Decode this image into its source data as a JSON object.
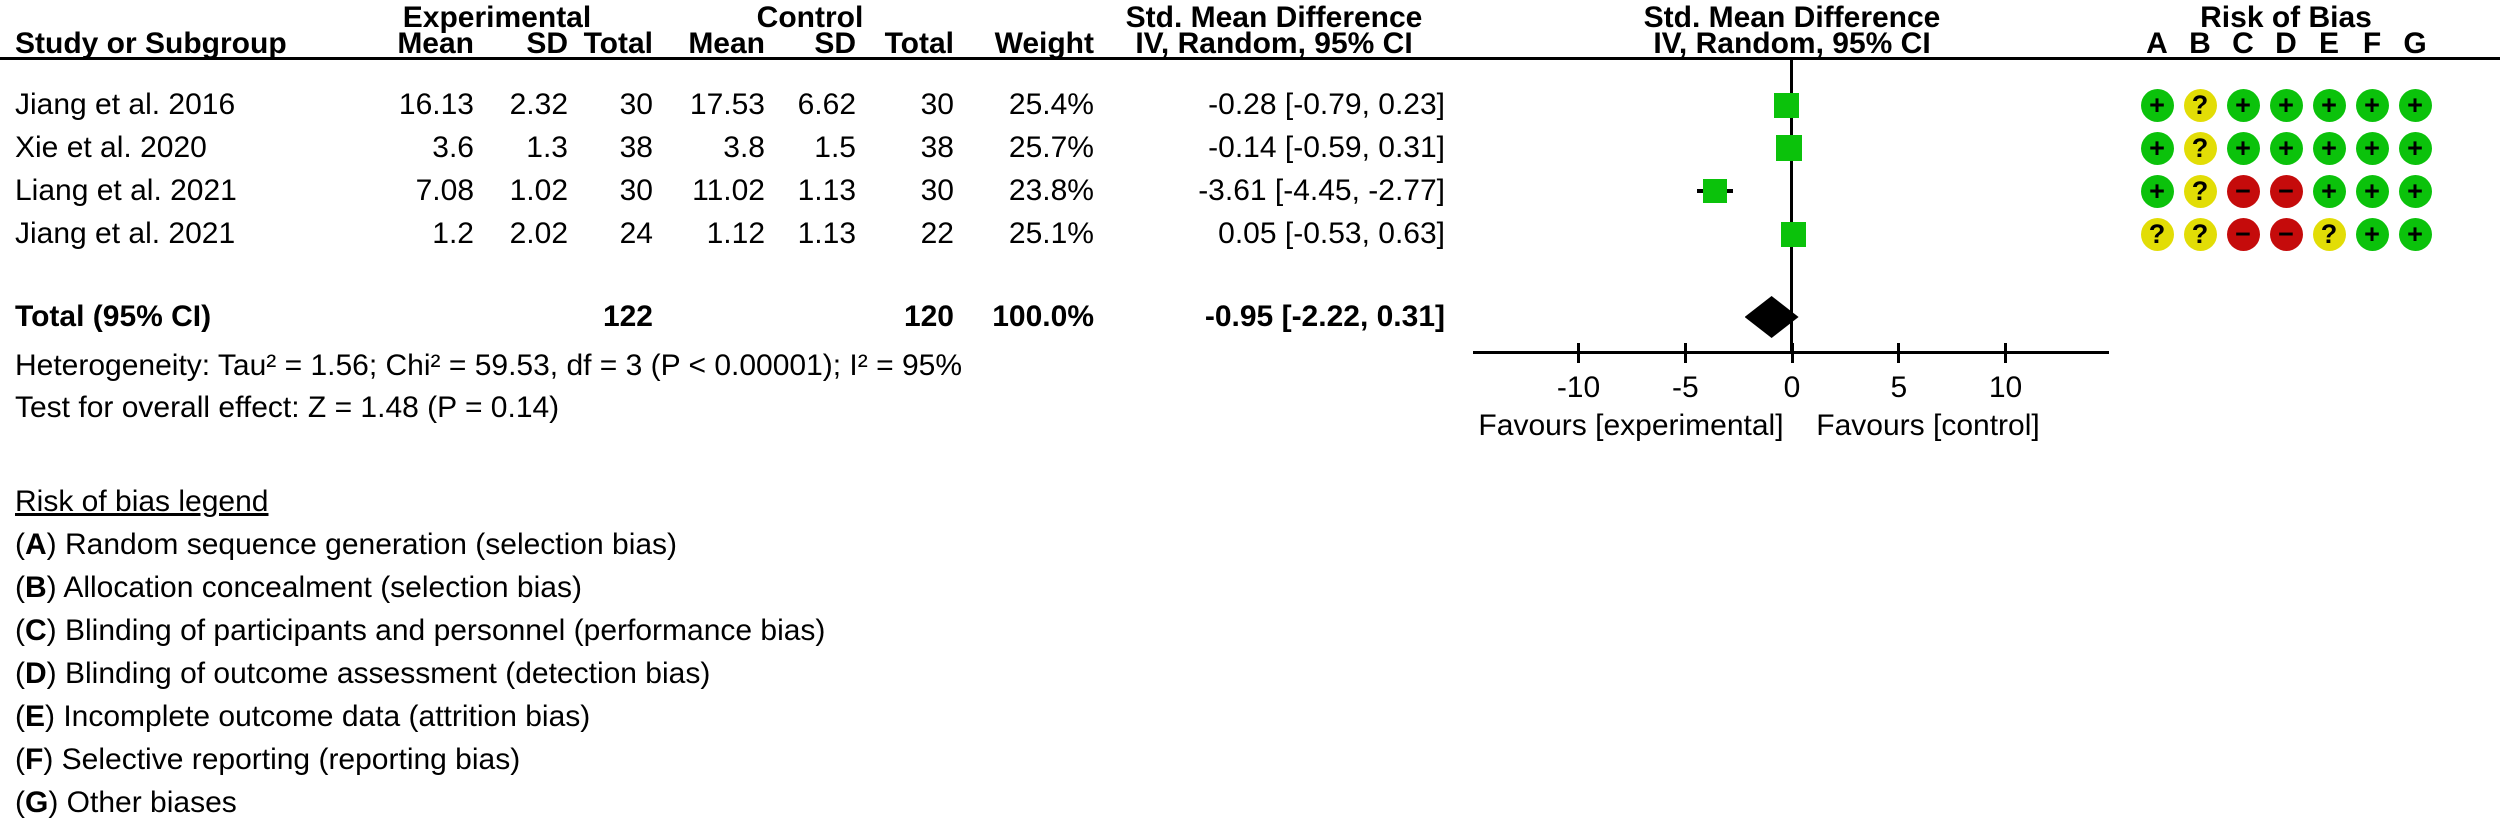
{
  "table": {
    "headers": {
      "group1": "Experimental",
      "group2": "Control",
      "study": "Study or Subgroup",
      "mean": "Mean",
      "sd": "SD",
      "total": "Total",
      "weight": "Weight",
      "smd_col_title": "Std. Mean Difference",
      "smd_col_sub": "IV, Random, 95% CI",
      "plot_col_title": "Std. Mean Difference",
      "plot_col_sub": "IV, Random, 95% CI",
      "rob_title": "Risk of Bias",
      "rob_cols": [
        "A",
        "B",
        "C",
        "D",
        "E",
        "F",
        "G"
      ]
    },
    "rows": [
      {
        "study": "Jiang et al. 2016",
        "mean1": "16.13",
        "sd1": "2.32",
        "total1": "30",
        "mean2": "17.53",
        "sd2": "6.62",
        "total2": "30",
        "weight": "25.4%",
        "ci_text": "-0.28 [-0.79, 0.23]",
        "rob": [
          "+",
          "?",
          "+",
          "+",
          "+",
          "+",
          "+"
        ]
      },
      {
        "study": "Xie et al. 2020",
        "mean1": "3.6",
        "sd1": "1.3",
        "total1": "38",
        "mean2": "3.8",
        "sd2": "1.5",
        "total2": "38",
        "weight": "25.7%",
        "ci_text": "-0.14 [-0.59, 0.31]",
        "rob": [
          "+",
          "?",
          "+",
          "+",
          "+",
          "+",
          "+"
        ]
      },
      {
        "study": "Liang et al. 2021",
        "mean1": "7.08",
        "sd1": "1.02",
        "total1": "30",
        "mean2": "11.02",
        "sd2": "1.13",
        "total2": "30",
        "weight": "23.8%",
        "ci_text": "-3.61 [-4.45, -2.77]",
        "rob": [
          "+",
          "?",
          "-",
          "-",
          "+",
          "+",
          "+"
        ]
      },
      {
        "study": "Jiang et al. 2021",
        "mean1": "1.2",
        "sd1": "2.02",
        "total1": "24",
        "mean2": "1.12",
        "sd2": "1.13",
        "total2": "22",
        "weight": "25.1%",
        "ci_text": "0.05 [-0.53, 0.63]",
        "rob": [
          "?",
          "?",
          "-",
          "-",
          "?",
          "+",
          "+"
        ]
      }
    ],
    "total_row": {
      "label": "Total (95% CI)",
      "total1": "122",
      "total2": "120",
      "weight": "100.0%",
      "ci_text": "-0.95 [-2.22, 0.31]"
    },
    "heterogeneity": "Heterogeneity: Tau² = 1.56; Chi² = 59.53, df = 3 (P < 0.00001); I² = 95%",
    "overall_effect": "Test for overall effect: Z = 1.48 (P = 0.14)"
  },
  "rob_legend": {
    "title": "Risk of bias legend",
    "items": [
      {
        "key": "A",
        "label": "Random sequence generation (selection bias)"
      },
      {
        "key": "B",
        "label": "Allocation concealment (selection bias)"
      },
      {
        "key": "C",
        "label": "Blinding of participants and personnel (performance bias)"
      },
      {
        "key": "D",
        "label": "Blinding of outcome assessment (detection bias)"
      },
      {
        "key": "E",
        "label": "Incomplete outcome data (attrition bias)"
      },
      {
        "key": "F",
        "label": "Selective reporting (reporting bias)"
      },
      {
        "key": "G",
        "label": "Other biases"
      }
    ]
  },
  "colors": {
    "square": "#0BC20B",
    "diamond": "#000000",
    "rob_low": "#0BC20B",
    "rob_unclear": "#E2DD06",
    "rob_high": "#C50B0B"
  },
  "chart_data": {
    "type": "forest",
    "title": "Std. Mean Difference",
    "effect_measure": "IV, Random, 95% CI",
    "xlim": [
      -15,
      15
    ],
    "x_ticks": [
      -10,
      -5,
      0,
      5,
      10
    ],
    "x_axis_labels": {
      "left": "Favours [experimental]",
      "right": "Favours [control]"
    },
    "studies": [
      {
        "name": "Jiang et al. 2016",
        "smd": -0.28,
        "ci": [
          -0.79,
          0.23
        ],
        "weight_pct": 25.4,
        "n_exp": 30,
        "n_ctrl": 30
      },
      {
        "name": "Xie et al. 2020",
        "smd": -0.14,
        "ci": [
          -0.59,
          0.31
        ],
        "weight_pct": 25.7,
        "n_exp": 38,
        "n_ctrl": 38
      },
      {
        "name": "Liang et al. 2021",
        "smd": -3.61,
        "ci": [
          -4.45,
          -2.77
        ],
        "weight_pct": 23.8,
        "n_exp": 30,
        "n_ctrl": 30
      },
      {
        "name": "Jiang et al. 2021",
        "smd": 0.05,
        "ci": [
          -0.53,
          0.63
        ],
        "weight_pct": 25.1,
        "n_exp": 24,
        "n_ctrl": 22
      }
    ],
    "total": {
      "name": "Total (95% CI)",
      "smd": -0.95,
      "ci": [
        -2.22,
        0.31
      ],
      "weight_pct": 100.0,
      "n_exp": 122,
      "n_ctrl": 120
    },
    "heterogeneity": "Tau² = 1.56; Chi² = 59.53, df = 3 (P < 0.00001); I² = 95%",
    "overall_effect": "Z = 1.48 (P = 0.14)"
  }
}
